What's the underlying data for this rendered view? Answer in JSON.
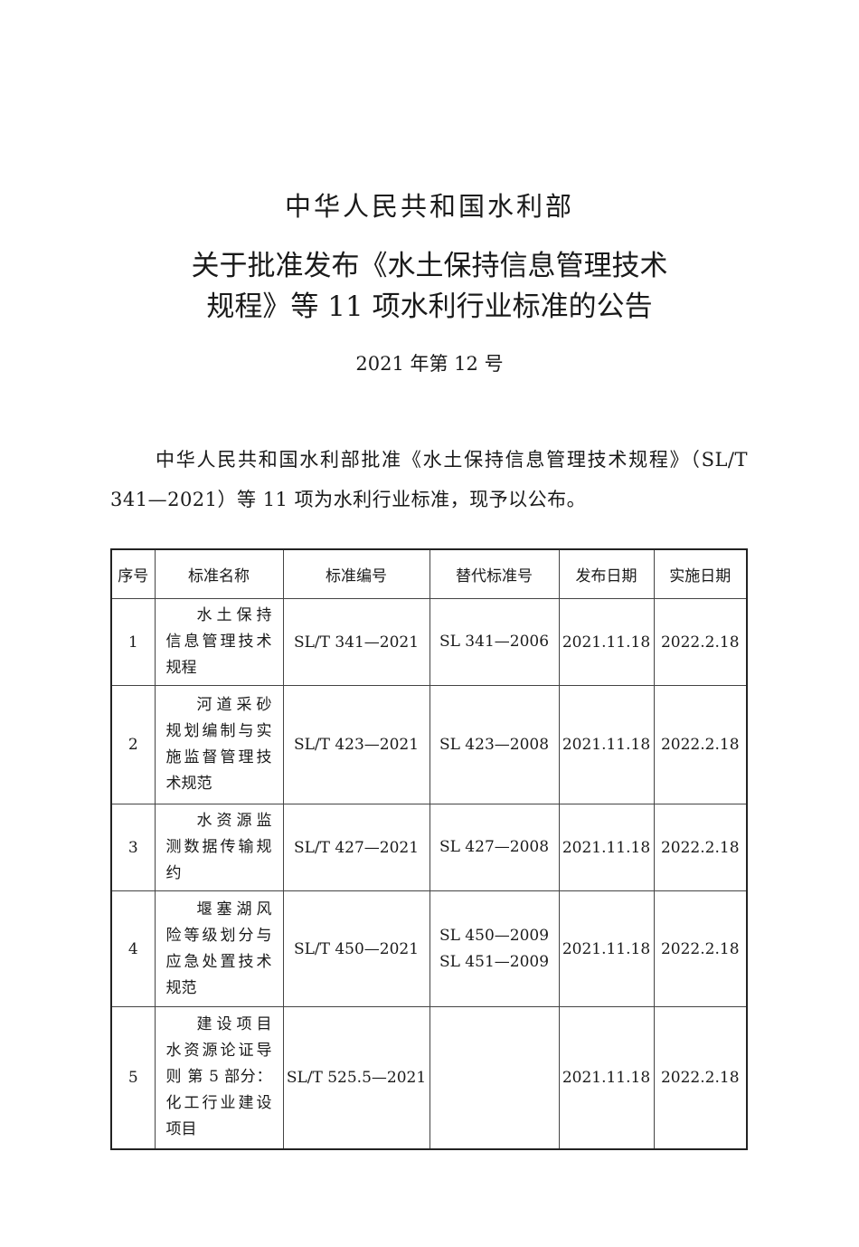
{
  "header": {
    "ministry": "中华人民共和国水利部",
    "title_line1": "关于批准发布《水土保持信息管理技术",
    "title_line2": "规程》等 11 项水利行业标准的公告",
    "doc_number": "2021 年第 12 号"
  },
  "body": {
    "paragraph": "中华人民共和国水利部批准《水土保持信息管理技术规程》（SL/T 341—2021）等 11 项为水利行业标准，现予以公布。"
  },
  "table": {
    "headers": [
      "序号",
      "标准名称",
      "标准编号",
      "替代标准号",
      "发布日期",
      "实施日期"
    ],
    "rows": [
      {
        "no": "1",
        "name": "水土保持信息管理技术规程",
        "code": "SL/T 341—2021",
        "replaces": [
          "SL 341—2006"
        ],
        "published": "2021.11.18",
        "effective": "2022.2.18"
      },
      {
        "no": "2",
        "name": "河道采砂规划编制与实施监督管理技术规范",
        "code": "SL/T 423—2021",
        "replaces": [
          "SL 423—2008"
        ],
        "published": "2021.11.18",
        "effective": "2022.2.18"
      },
      {
        "no": "3",
        "name": "水资源监测数据传输规约",
        "code": "SL/T 427—2021",
        "replaces": [
          "SL 427—2008"
        ],
        "published": "2021.11.18",
        "effective": "2022.2.18"
      },
      {
        "no": "4",
        "name": "堰塞湖风险等级划分与应急处置技术规范",
        "code": "SL/T 450—2021",
        "replaces": [
          "SL 450—2009",
          "SL 451—2009"
        ],
        "published": "2021.11.18",
        "effective": "2022.2.18"
      },
      {
        "no": "5",
        "name": "建设项目水资源论证导则 第 5 部分：化工行业建设项目",
        "code": "SL/T 525.5—2021",
        "replaces": [],
        "published": "2021.11.18",
        "effective": "2022.2.18"
      }
    ]
  }
}
